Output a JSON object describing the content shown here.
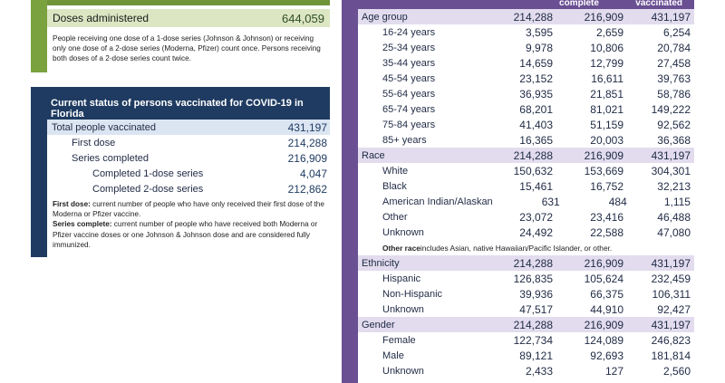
{
  "doses": {
    "label": "Doses administered",
    "value": "644,059",
    "note": "People receiving one dose of a 1-dose series (Johnson & Johnson) or receiving only one dose of a 2-dose series (Moderna, Pfizer) count once. Persons receiving both doses of a 2-dose series count twice."
  },
  "status": {
    "title": "Current status of persons vaccinated for COVID-19 in Florida",
    "rows": [
      {
        "label": "Total people vaccinated",
        "value": "431,197"
      },
      {
        "label": "First dose",
        "value": "214,288"
      },
      {
        "label": "Series completed",
        "value": "216,909"
      },
      {
        "label": "Completed 1-dose series",
        "value": "4,047"
      },
      {
        "label": "Completed 2-dose series",
        "value": "212,862"
      }
    ],
    "note_first_term": "First dose:",
    "note_first_text": " current number of people who have only received their first dose of the Moderna or Pfizer vaccine.",
    "note_series_term": "Series complete:",
    "note_series_text": " current number of people who have received both Moderna or Pfizer vaccine doses or one Johnson & Johnson dose and are considered fully immunized."
  },
  "demographics": {
    "col_headers": [
      "",
      "complete",
      "vaccinated"
    ],
    "groups": [
      {
        "label": "Age group",
        "values": [
          "214,288",
          "216,909",
          "431,197"
        ],
        "rows": [
          {
            "label": "16-24 years",
            "values": [
              "3,595",
              "2,659",
              "6,254"
            ]
          },
          {
            "label": "25-34 years",
            "values": [
              "9,978",
              "10,806",
              "20,784"
            ]
          },
          {
            "label": "35-44 years",
            "values": [
              "14,659",
              "12,799",
              "27,458"
            ]
          },
          {
            "label": "45-54 years",
            "values": [
              "23,152",
              "16,611",
              "39,763"
            ]
          },
          {
            "label": "55-64 years",
            "values": [
              "36,935",
              "21,851",
              "58,786"
            ]
          },
          {
            "label": "65-74 years",
            "values": [
              "68,201",
              "81,021",
              "149,222"
            ]
          },
          {
            "label": "75-84 years",
            "values": [
              "41,403",
              "51,159",
              "92,562"
            ]
          },
          {
            "label": "85+ years",
            "values": [
              "16,365",
              "20,003",
              "36,368"
            ]
          }
        ]
      },
      {
        "label": "Race",
        "values": [
          "214,288",
          "216,909",
          "431,197"
        ],
        "rows": [
          {
            "label": "White",
            "values": [
              "150,632",
              "153,669",
              "304,301"
            ]
          },
          {
            "label": "Black",
            "values": [
              "15,461",
              "16,752",
              "32,213"
            ]
          },
          {
            "label": "American Indian/Alaskan",
            "values": [
              "631",
              "484",
              "1,115"
            ]
          },
          {
            "label": "Other",
            "values": [
              "23,072",
              "23,416",
              "46,488"
            ]
          },
          {
            "label": "Unknown",
            "values": [
              "24,492",
              "22,588",
              "47,080"
            ]
          }
        ]
      },
      {
        "label": "Ethnicity",
        "values": [
          "214,288",
          "216,909",
          "431,197"
        ],
        "rows": [
          {
            "label": "Hispanic",
            "values": [
              "126,835",
              "105,624",
              "232,459"
            ]
          },
          {
            "label": "Non-Hispanic",
            "values": [
              "39,936",
              "66,375",
              "106,311"
            ]
          },
          {
            "label": "Unknown",
            "values": [
              "47,517",
              "44,910",
              "92,427"
            ]
          }
        ]
      },
      {
        "label": "Gender",
        "values": [
          "214,288",
          "216,909",
          "431,197"
        ],
        "rows": [
          {
            "label": "Female",
            "values": [
              "122,734",
              "124,089",
              "246,823"
            ]
          },
          {
            "label": "Male",
            "values": [
              "89,121",
              "92,693",
              "181,814"
            ]
          },
          {
            "label": "Unknown",
            "values": [
              "2,433",
              "127",
              "2,560"
            ]
          }
        ]
      }
    ],
    "race_note_term": "Other race",
    "race_note_text": " includes Asian, native Hawaiian/Pacific Islander, or other."
  },
  "colors": {
    "green": "#7aa23f",
    "green_light": "#dce6c3",
    "navy": "#1f3b61",
    "blue_light": "#dbe5f2",
    "purple": "#6a4f93",
    "purple_light": "#e2dcee"
  }
}
